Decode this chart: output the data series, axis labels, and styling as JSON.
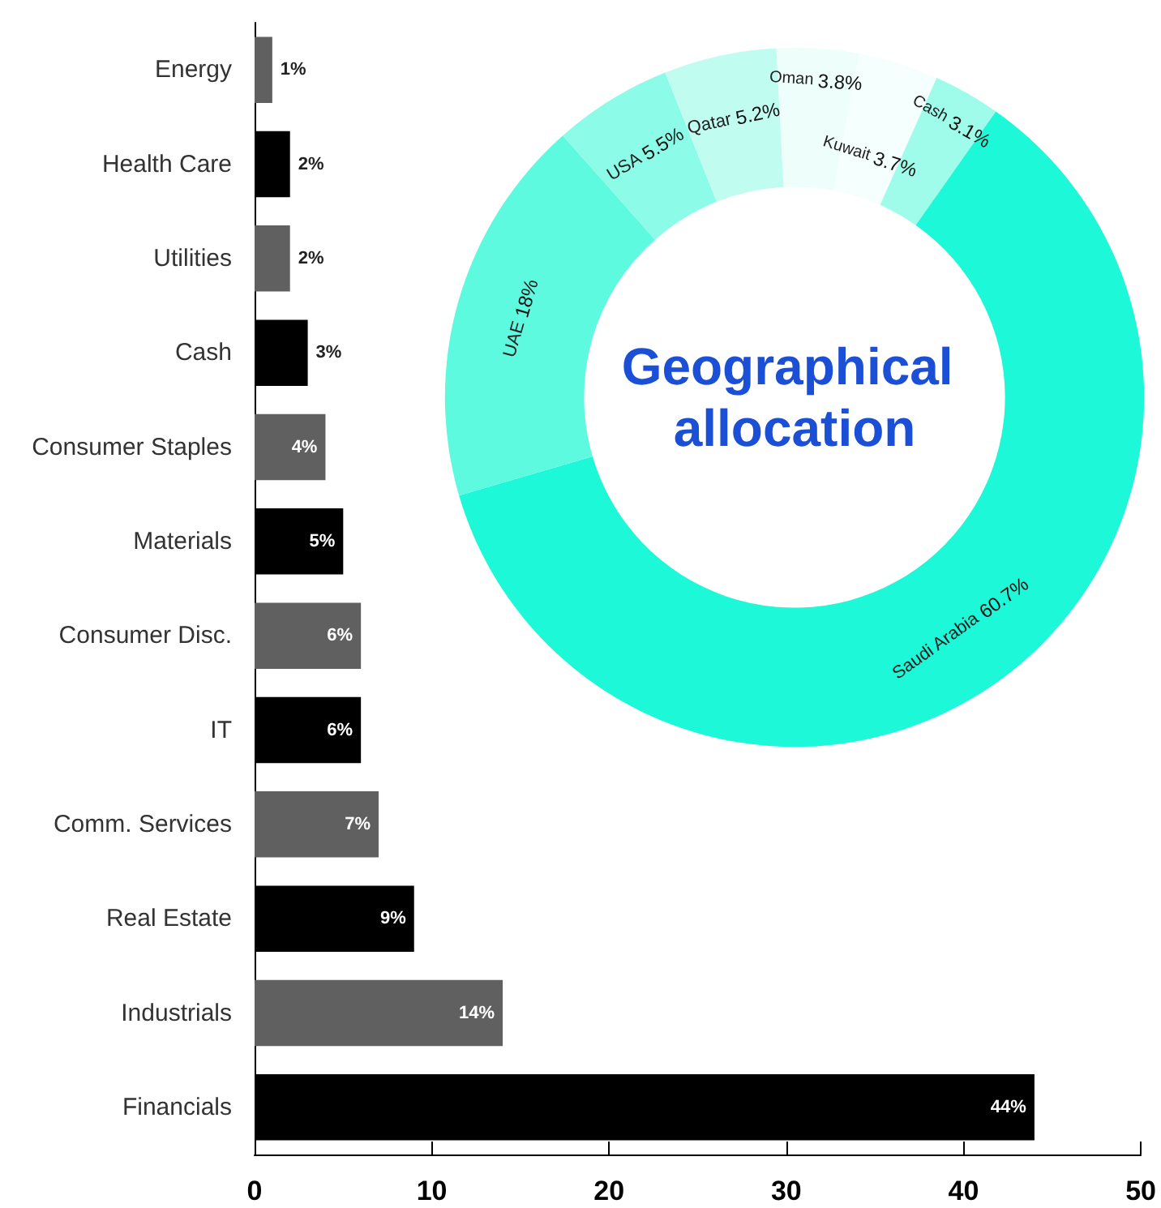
{
  "chart_data": [
    {
      "type": "bar",
      "orientation": "horizontal",
      "categories": [
        "Energy",
        "Health Care",
        "Utilities",
        "Cash",
        "Consumer Staples",
        "Materials",
        "Consumer Disc.",
        "IT",
        "Comm. Services",
        "Real Estate",
        "Industrials",
        "Financials"
      ],
      "values": [
        1,
        2,
        2,
        3,
        4,
        5,
        6,
        6,
        7,
        9,
        14,
        44
      ],
      "colors": [
        "#606060",
        "#000000",
        "#606060",
        "#000000",
        "#606060",
        "#000000",
        "#606060",
        "#000000",
        "#606060",
        "#000000",
        "#606060",
        "#000000"
      ],
      "value_labels": [
        "1%",
        "2%",
        "2%",
        "3%",
        "4%",
        "5%",
        "6%",
        "6%",
        "7%",
        "9%",
        "14%",
        "44%"
      ],
      "xlim": [
        0,
        50
      ],
      "xticks": [
        0,
        10,
        20,
        30,
        40,
        50
      ],
      "grid": false,
      "legend": false
    },
    {
      "type": "donut",
      "title": "Geographical allocation",
      "categories": [
        "Oman",
        "Kuwait",
        "Cash",
        "Saudi Arabia",
        "UAE",
        "USA",
        "Qatar"
      ],
      "values": [
        3.8,
        3.7,
        3.1,
        60.7,
        18,
        5.5,
        5.2
      ],
      "colors": [
        "#eefffb",
        "#f5fffd",
        "#a0fcea",
        "#1cf8d8",
        "#5efae0",
        "#8cfbe8",
        "#c0fcf0"
      ],
      "value_labels": [
        "3.8%",
        "3.7%",
        "3.1%",
        "60.7%",
        "18%",
        "5.5%",
        "5.2%"
      ],
      "legend": false
    }
  ]
}
